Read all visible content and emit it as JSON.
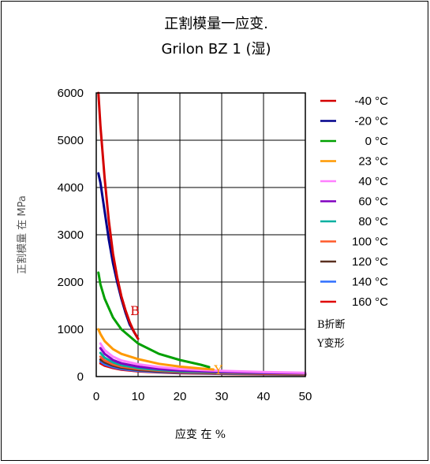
{
  "chart_data": {
    "type": "line",
    "title": "正割模量一应变.",
    "subtitle": "Grilon BZ 1 (湿)",
    "xlabel": "应变 在 %",
    "ylabel": "正割模量 在  MPa",
    "xlim": [
      0,
      50
    ],
    "ylim": [
      0,
      6000
    ],
    "x_ticks": [
      "0",
      "10",
      "20",
      "30",
      "40",
      "50"
    ],
    "y_ticks": [
      "0",
      "1000",
      "2000",
      "3000",
      "4000",
      "5000",
      "6000"
    ],
    "grid": true,
    "legend_position": "right",
    "notes": [
      "B折断",
      "Y变形"
    ],
    "series": [
      {
        "name": "-40 °C",
        "color": "#d40000",
        "end_marker": "B",
        "marker_color": "#d40000",
        "x": [
          0.5,
          1,
          2,
          3,
          4,
          5,
          6,
          7,
          8,
          9,
          10
        ],
        "y": [
          6000,
          5300,
          4200,
          3300,
          2600,
          2100,
          1700,
          1400,
          1150,
          950,
          800
        ]
      },
      {
        "name": "-20 °C",
        "color": "#00008b",
        "x": [
          0.5,
          1,
          2,
          3,
          4,
          5,
          6,
          7,
          8,
          9,
          10
        ],
        "y": [
          4300,
          4100,
          3500,
          2900,
          2400,
          2000,
          1650,
          1350,
          1100,
          950,
          800
        ]
      },
      {
        "name": "0 °C",
        "color": "#00a000",
        "x": [
          0.5,
          1,
          2,
          4,
          6,
          8,
          10,
          15,
          20,
          25,
          27
        ],
        "y": [
          2200,
          1950,
          1650,
          1250,
          1000,
          850,
          700,
          480,
          350,
          250,
          200
        ]
      },
      {
        "name": "23 °C",
        "color": "#ff9900",
        "end_marker": "Y",
        "marker_color": "#ff9900",
        "x": [
          0.5,
          1,
          2,
          4,
          6,
          10,
          15,
          20,
          25,
          28
        ],
        "y": [
          1000,
          900,
          750,
          580,
          480,
          370,
          270,
          210,
          170,
          150
        ]
      },
      {
        "name": "40 °C",
        "color": "#ff7fff",
        "x": [
          1,
          2,
          4,
          6,
          10,
          15,
          20,
          30,
          40,
          50
        ],
        "y": [
          700,
          560,
          420,
          340,
          260,
          200,
          160,
          120,
          95,
          80
        ]
      },
      {
        "name": "60 °C",
        "color": "#8000c0",
        "x": [
          1,
          2,
          4,
          6,
          10,
          15,
          20,
          30,
          40,
          50
        ],
        "y": [
          600,
          480,
          350,
          280,
          210,
          160,
          130,
          100,
          80,
          70
        ]
      },
      {
        "name": "80 °C",
        "color": "#00b0a0",
        "x": [
          1,
          2,
          4,
          6,
          10,
          15,
          20,
          30,
          40,
          50
        ],
        "y": [
          500,
          400,
          300,
          240,
          180,
          140,
          110,
          90,
          75,
          65
        ]
      },
      {
        "name": "100 °C",
        "color": "#ff5a2a",
        "x": [
          1,
          2,
          4,
          6,
          10,
          15,
          20,
          30,
          40,
          50
        ],
        "y": [
          420,
          340,
          260,
          210,
          160,
          125,
          100,
          80,
          65,
          55
        ]
      },
      {
        "name": "120 °C",
        "color": "#5a3020",
        "x": [
          1,
          2,
          4,
          6,
          10,
          15,
          20,
          30,
          40,
          50
        ],
        "y": [
          360,
          300,
          230,
          185,
          140,
          110,
          90,
          70,
          58,
          50
        ]
      },
      {
        "name": "140 °C",
        "color": "#2f6fff",
        "x": [
          1,
          2,
          4,
          6,
          10,
          15,
          20,
          30,
          40,
          50
        ],
        "y": [
          320,
          260,
          200,
          160,
          120,
          95,
          80,
          62,
          52,
          45
        ]
      },
      {
        "name": "160 °C",
        "color": "#e00000",
        "x": [
          1,
          2,
          4,
          6,
          10,
          15,
          20,
          30,
          40,
          50
        ],
        "y": [
          280,
          230,
          180,
          145,
          110,
          88,
          72,
          56,
          46,
          40
        ]
      }
    ]
  }
}
